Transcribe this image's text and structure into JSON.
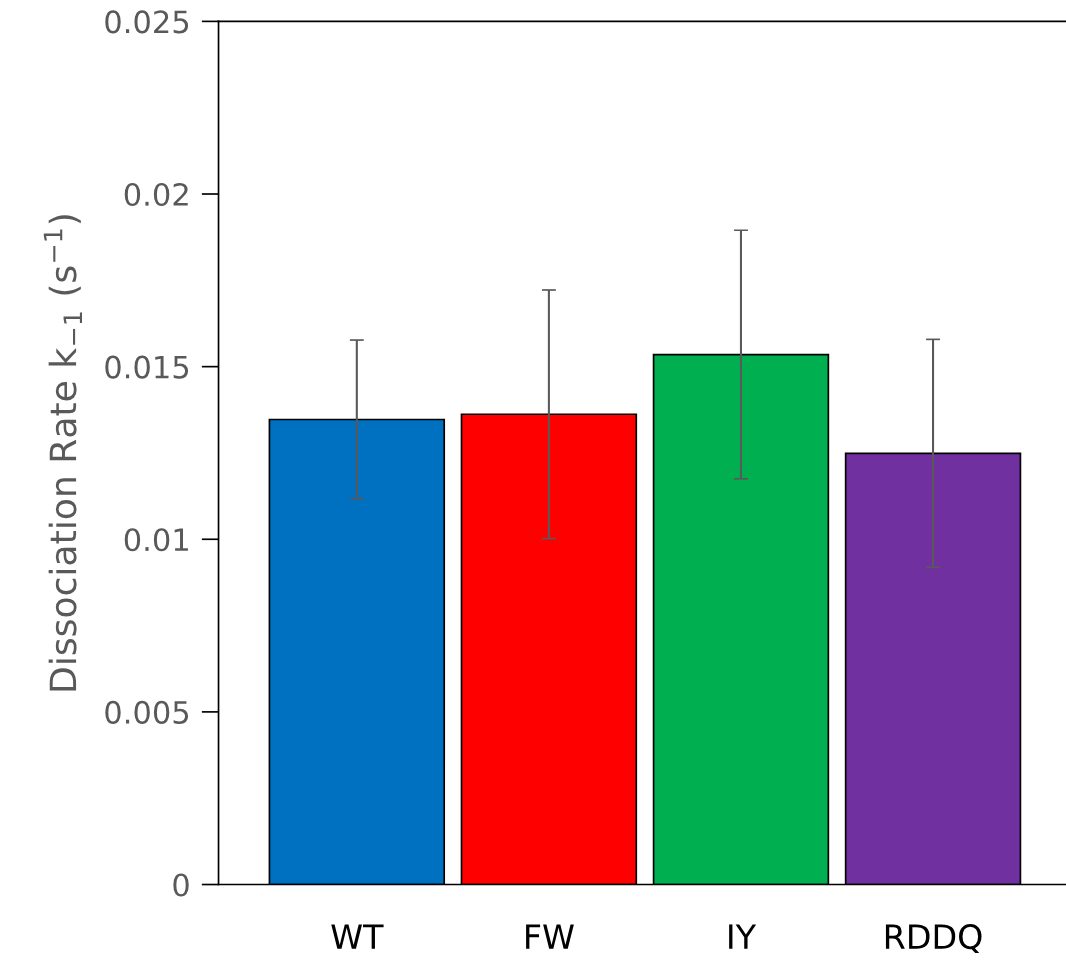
{
  "chart_data": {
    "type": "bar",
    "categories": [
      "WT",
      "FW",
      "IY",
      "RDDQ"
    ],
    "values": [
      0.01347,
      0.01362,
      0.01535,
      0.01249
    ],
    "errors": [
      0.0023,
      0.0036,
      0.0036,
      0.0033
    ],
    "colors": [
      "#0070c0",
      "#ff0000",
      "#00b050",
      "#7030a0"
    ],
    "ylabel": "Dissociation Rate k$_{−1}$ (s$^{−1}$)",
    "ylim": [
      0,
      0.025
    ],
    "yticks": [
      0,
      0.005,
      0.01,
      0.015,
      0.02,
      0.025
    ],
    "grid": false,
    "legend": false
  }
}
